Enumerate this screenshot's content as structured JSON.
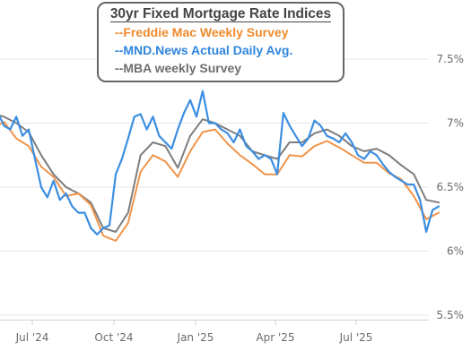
{
  "chart_data": {
    "type": "line",
    "title": "30yr Fixed Mortgage Rate Indices",
    "xlabel": "",
    "ylabel": "",
    "x_ticks": [
      "Jul '24",
      "Oct '24",
      "Jan '25",
      "Apr '25",
      "Jul '25"
    ],
    "y_ticks": [
      "5.5%",
      "6%",
      "6.5%",
      "7%",
      "7.5%"
    ],
    "ylim": [
      5.5,
      7.5
    ],
    "grid": "horizontal",
    "legend_position": "top-center",
    "series": [
      {
        "name": "--Freddie Mac Weekly Survey",
        "color": "#f0944a",
        "x": [
          "2024-05-01",
          "2024-05-15",
          "2024-05-30",
          "2024-06-13",
          "2024-06-27",
          "2024-07-11",
          "2024-07-25",
          "2024-08-08",
          "2024-08-22",
          "2024-09-05",
          "2024-09-19",
          "2024-10-03",
          "2024-10-17",
          "2024-10-31",
          "2024-11-14",
          "2024-11-28",
          "2024-12-12",
          "2024-12-26",
          "2025-01-09",
          "2025-01-23",
          "2025-02-06",
          "2025-02-20",
          "2025-03-06",
          "2025-03-20",
          "2025-04-03",
          "2025-04-17",
          "2025-05-01",
          "2025-05-15",
          "2025-05-29",
          "2025-06-12",
          "2025-06-26",
          "2025-07-10",
          "2025-07-24",
          "2025-08-07",
          "2025-08-21",
          "2025-09-04",
          "2025-09-18",
          "2025-10-02"
        ],
        "values": [
          7.0,
          6.95,
          7.01,
          6.88,
          6.82,
          6.66,
          6.58,
          6.43,
          6.45,
          6.36,
          6.12,
          6.08,
          6.22,
          6.62,
          6.75,
          6.7,
          6.58,
          6.78,
          6.93,
          6.95,
          6.84,
          6.75,
          6.68,
          6.6,
          6.6,
          6.75,
          6.74,
          6.82,
          6.86,
          6.81,
          6.75,
          6.69,
          6.69,
          6.61,
          6.56,
          6.43,
          6.25,
          6.3
        ]
      },
      {
        "name": "--MND.News Actual Daily Avg.",
        "color": "#3c8ee0",
        "x": [
          "2024-05-01",
          "2024-05-08",
          "2024-05-15",
          "2024-05-22",
          "2024-05-30",
          "2024-06-06",
          "2024-06-13",
          "2024-06-20",
          "2024-06-27",
          "2024-07-04",
          "2024-07-11",
          "2024-07-18",
          "2024-07-25",
          "2024-08-01",
          "2024-08-08",
          "2024-08-15",
          "2024-08-22",
          "2024-08-29",
          "2024-09-05",
          "2024-09-12",
          "2024-09-19",
          "2024-09-26",
          "2024-10-03",
          "2024-10-10",
          "2024-10-17",
          "2024-10-24",
          "2024-10-31",
          "2024-11-07",
          "2024-11-14",
          "2024-11-21",
          "2024-11-28",
          "2024-12-05",
          "2024-12-12",
          "2024-12-19",
          "2024-12-26",
          "2025-01-02",
          "2025-01-09",
          "2025-01-16",
          "2025-01-23",
          "2025-01-30",
          "2025-02-06",
          "2025-02-13",
          "2025-02-20",
          "2025-02-27",
          "2025-03-06",
          "2025-03-13",
          "2025-03-20",
          "2025-03-27",
          "2025-04-03",
          "2025-04-10",
          "2025-04-17",
          "2025-04-24",
          "2025-05-01",
          "2025-05-08",
          "2025-05-15",
          "2025-05-22",
          "2025-05-29",
          "2025-06-05",
          "2025-06-12",
          "2025-06-19",
          "2025-06-26",
          "2025-07-03",
          "2025-07-10",
          "2025-07-17",
          "2025-07-24",
          "2025-07-31",
          "2025-08-07",
          "2025-08-14",
          "2025-08-21",
          "2025-08-28",
          "2025-09-04",
          "2025-09-11",
          "2025-09-18",
          "2025-09-25",
          "2025-10-02"
        ],
        "values": [
          7.32,
          7.15,
          7.05,
          7.1,
          6.98,
          6.95,
          7.05,
          6.9,
          6.95,
          6.72,
          6.5,
          6.42,
          6.55,
          6.4,
          6.45,
          6.35,
          6.3,
          6.3,
          6.18,
          6.13,
          6.18,
          6.2,
          6.6,
          6.72,
          6.88,
          7.05,
          7.07,
          6.95,
          7.05,
          6.9,
          6.85,
          6.8,
          6.95,
          7.08,
          7.18,
          7.05,
          7.25,
          7.0,
          7.0,
          6.95,
          6.92,
          6.85,
          6.95,
          6.82,
          6.78,
          6.72,
          6.75,
          6.72,
          6.6,
          7.08,
          6.98,
          6.9,
          6.82,
          6.88,
          7.02,
          6.98,
          6.9,
          6.88,
          6.85,
          6.92,
          6.85,
          6.75,
          6.72,
          6.78,
          6.75,
          6.68,
          6.62,
          6.58,
          6.55,
          6.52,
          6.52,
          6.4,
          6.15,
          6.32,
          6.35
        ]
      },
      {
        "name": "--MBA weekly Survey",
        "color": "#7d7d7d",
        "x": [
          "2024-05-01",
          "2024-05-15",
          "2024-05-30",
          "2024-06-13",
          "2024-06-27",
          "2024-07-11",
          "2024-07-25",
          "2024-08-08",
          "2024-08-22",
          "2024-09-05",
          "2024-09-19",
          "2024-10-03",
          "2024-10-17",
          "2024-10-31",
          "2024-11-14",
          "2024-11-28",
          "2024-12-12",
          "2024-12-26",
          "2025-01-09",
          "2025-01-23",
          "2025-02-06",
          "2025-02-20",
          "2025-03-06",
          "2025-03-20",
          "2025-04-03",
          "2025-04-17",
          "2025-05-01",
          "2025-05-15",
          "2025-05-29",
          "2025-06-12",
          "2025-06-26",
          "2025-07-10",
          "2025-07-24",
          "2025-08-07",
          "2025-08-21",
          "2025-09-04",
          "2025-09-18",
          "2025-10-02"
        ],
        "values": [
          7.05,
          7.08,
          7.05,
          7.0,
          6.93,
          6.75,
          6.6,
          6.5,
          6.45,
          6.38,
          6.18,
          6.15,
          6.3,
          6.75,
          6.85,
          6.82,
          6.65,
          6.9,
          7.03,
          7.0,
          6.95,
          6.9,
          6.78,
          6.75,
          6.72,
          6.85,
          6.85,
          6.92,
          6.95,
          6.9,
          6.82,
          6.78,
          6.8,
          6.75,
          6.67,
          6.6,
          6.4,
          6.38
        ]
      }
    ]
  }
}
